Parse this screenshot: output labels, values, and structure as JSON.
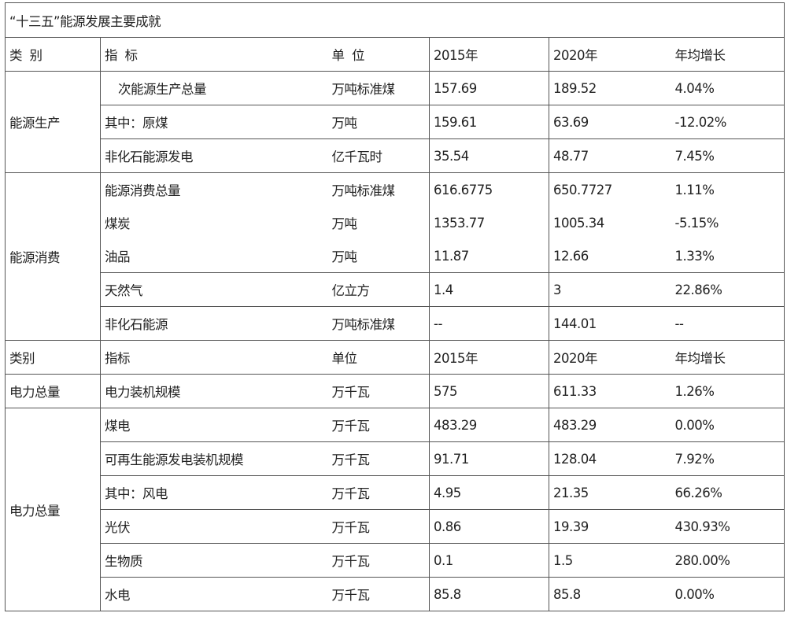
{
  "title": "“十三五”能源发展主要成就",
  "header": {
    "category": "类  别",
    "indicator": "指  标",
    "unit": "单  位",
    "y2015": "2015年",
    "y2020": "2020年",
    "growth": "年均增长"
  },
  "header2": {
    "category": "类别",
    "indicator": "指标",
    "unit": "单位",
    "y2015": "2015年",
    "y2020": "2020年",
    "growth": "年均增长"
  },
  "groups": {
    "production": {
      "category": "能源生产",
      "rows": [
        {
          "indicator": "次能源生产总量",
          "unit": "万吨标准煤",
          "y2015": "157.69",
          "y2020": "189.52",
          "growth": "4.04%"
        },
        {
          "indicator": "其中：原煤",
          "unit": "万吨",
          "y2015": "159.61",
          "y2020": "63.69",
          "growth": "-12.02%"
        },
        {
          "indicator": "非化石能源发电",
          "unit": "亿千瓦时",
          "y2015": "35.54",
          "y2020": "48.77",
          "growth": "7.45%"
        }
      ]
    },
    "consumption": {
      "category": "能源消费",
      "rows": [
        {
          "indicator": "能源消费总量",
          "unit": "万吨标准煤",
          "y2015": "616.6775",
          "y2020": "650.7727",
          "growth": "1.11%"
        },
        {
          "indicator": "煤炭",
          "unit": "万吨",
          "y2015": "1353.77",
          "y2020": "1005.34",
          "growth": "-5.15%"
        },
        {
          "indicator": "油品",
          "unit": "万吨",
          "y2015": "11.87",
          "y2020": "12.66",
          "growth": "1.33%"
        },
        {
          "indicator": "天然气",
          "unit": "亿立方",
          "y2015": "1.4",
          "y2020": "3",
          "growth": "22.86%"
        },
        {
          "indicator": "非化石能源",
          "unit": "万吨标准煤",
          "y2015": "--",
          "y2020": "144.01",
          "growth": "--"
        }
      ]
    },
    "power_total": {
      "category": "电力总量",
      "rows": [
        {
          "indicator": "电力装机规模",
          "unit": "万千瓦",
          "y2015": "575",
          "y2020": "611.33",
          "growth": "1.26%"
        }
      ]
    },
    "power": {
      "category": "电力总量",
      "rows": [
        {
          "indicator": "煤电",
          "unit": "万千瓦",
          "y2015": "483.29",
          "y2020": "483.29",
          "growth": "0.00%"
        },
        {
          "indicator": "可再生能源发电装机规模",
          "unit": "万千瓦",
          "y2015": "91.71",
          "y2020": "128.04",
          "growth": "7.92%"
        },
        {
          "indicator": "其中：风电",
          "unit": "万千瓦",
          "y2015": "4.95",
          "y2020": "21.35",
          "growth": "66.26%"
        },
        {
          "indicator": "光伏",
          "unit": "万千瓦",
          "y2015": "0.86",
          "y2020": "19.39",
          "growth": "430.93%"
        },
        {
          "indicator": "生物质",
          "unit": "万千瓦",
          "y2015": "0.1",
          "y2020": "1.5",
          "growth": "280.00%"
        },
        {
          "indicator": "水电",
          "unit": "万千瓦",
          "y2015": "85.8",
          "y2020": "85.8",
          "growth": "0.00%"
        }
      ]
    }
  }
}
